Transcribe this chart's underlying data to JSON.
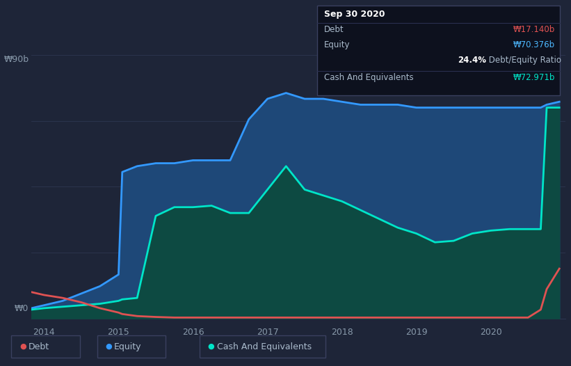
{
  "bg_color": "#1e2538",
  "plot_bg_color": "#1e2538",
  "grid_color": "#2d3650",
  "ylim": [
    0,
    90
  ],
  "ylabel_top": "₩90b",
  "ylabel_bottom": "₩0",
  "xticks": [
    2014,
    2015,
    2016,
    2017,
    2018,
    2019,
    2020
  ],
  "tooltip": {
    "date": "Sep 30 2020",
    "debt_label": "Debt",
    "debt_value": "₩17.140b",
    "debt_color": "#e05252",
    "equity_label": "Equity",
    "equity_value": "₩70.376b",
    "equity_color": "#4db8ff",
    "ratio_bold": "24.4%",
    "ratio_label": " Debt/Equity Ratio",
    "cash_label": "Cash And Equivalents",
    "cash_value": "₩72.971b",
    "cash_color": "#00e5c8"
  },
  "debt_color": "#e05252",
  "equity_color": "#3399ff",
  "cash_color": "#00e5c8",
  "legend_labels": [
    "Debt",
    "Equity",
    "Cash And Equivalents"
  ],
  "years": [
    2013.83,
    2014.0,
    2014.25,
    2014.5,
    2014.75,
    2015.0,
    2015.05,
    2015.25,
    2015.5,
    2015.75,
    2016.0,
    2016.25,
    2016.5,
    2016.75,
    2017.0,
    2017.25,
    2017.5,
    2017.75,
    2018.0,
    2018.25,
    2018.5,
    2018.75,
    2019.0,
    2019.25,
    2019.5,
    2019.75,
    2020.0,
    2020.25,
    2020.5,
    2020.67,
    2020.75,
    2020.92
  ],
  "debt_data": [
    9.0,
    8.0,
    7.0,
    5.5,
    3.5,
    2.0,
    1.5,
    0.8,
    0.5,
    0.3,
    0.3,
    0.3,
    0.3,
    0.3,
    0.3,
    0.3,
    0.3,
    0.3,
    0.3,
    0.3,
    0.3,
    0.3,
    0.3,
    0.3,
    0.3,
    0.3,
    0.3,
    0.3,
    0.3,
    3.0,
    10.0,
    17.0
  ],
  "equity_data": [
    3.5,
    4.5,
    6.0,
    8.5,
    11.0,
    15.0,
    50.0,
    52.0,
    53.0,
    53.0,
    54.0,
    54.0,
    54.0,
    68.0,
    75.0,
    77.0,
    75.0,
    75.0,
    74.0,
    73.0,
    73.0,
    73.0,
    72.0,
    72.0,
    72.0,
    72.0,
    72.0,
    72.0,
    72.0,
    72.0,
    73.0,
    74.0
  ],
  "cash_data": [
    3.0,
    3.5,
    4.0,
    4.5,
    5.0,
    6.0,
    6.5,
    7.0,
    35.0,
    38.0,
    38.0,
    38.5,
    36.0,
    36.0,
    44.0,
    52.0,
    44.0,
    42.0,
    40.0,
    37.0,
    34.0,
    31.0,
    29.0,
    26.0,
    26.5,
    29.0,
    30.0,
    30.5,
    30.5,
    30.5,
    72.0,
    72.0
  ]
}
